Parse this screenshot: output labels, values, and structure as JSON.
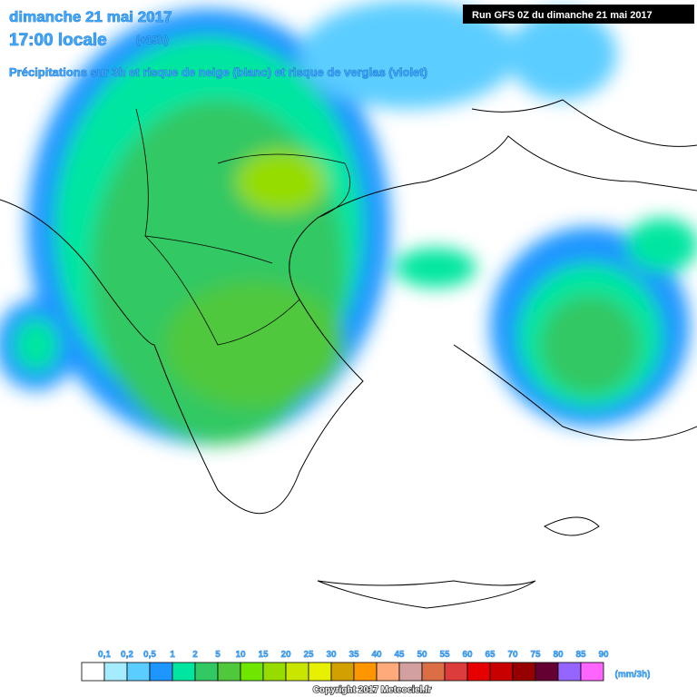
{
  "header": {
    "date": "dimanche 21 mai 2017",
    "time": "17:00 locale",
    "offset": "(+15h)",
    "subtitle": "Précipitations sur 3h et risque de neige (blanc) et risque de verglas (violet)",
    "run": "Run GFS 0Z du dimanche 21 mai 2017"
  },
  "legend": {
    "labels": [
      "0,1",
      "0,2",
      "0,5",
      "1",
      "2",
      "5",
      "10",
      "15",
      "20",
      "25",
      "30",
      "35",
      "40",
      "45",
      "50",
      "55",
      "60",
      "65",
      "70",
      "75",
      "80",
      "85",
      "90"
    ],
    "colors": [
      "#ffffff",
      "#a6ecff",
      "#5ccdff",
      "#1e96ff",
      "#00e6a0",
      "#32c864",
      "#50c83c",
      "#6ee600",
      "#96dc00",
      "#c8e600",
      "#e6f000",
      "#d2a000",
      "#ff9600",
      "#ffaa7a",
      "#d2a0a0",
      "#dc6e46",
      "#dc3c3c",
      "#e60000",
      "#c80000",
      "#960000",
      "#640032",
      "#9664ff",
      "#ff64ff"
    ],
    "unit": "(mm/3h)"
  },
  "footer": {
    "copyright": "Copyright 2017 Meteociel.fr"
  }
}
